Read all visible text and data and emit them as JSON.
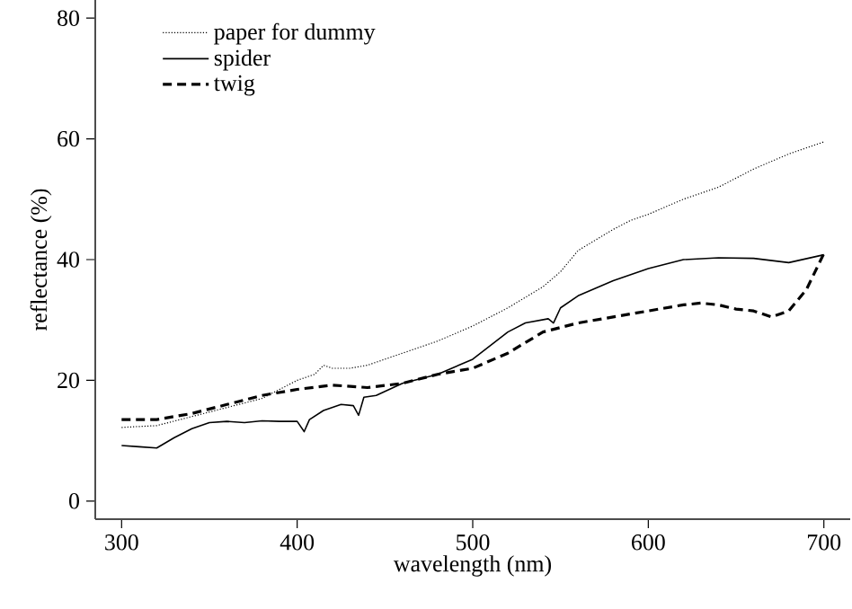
{
  "chart_data": {
    "type": "line",
    "xlabel": "wavelength (nm)",
    "ylabel": "reflectance (%)",
    "xlim": [
      285,
      715
    ],
    "ylim": [
      -3,
      83
    ],
    "xticks": [
      300,
      400,
      500,
      600,
      700
    ],
    "yticks": [
      0,
      20,
      40,
      60,
      80
    ],
    "grid": false,
    "legend": "top left",
    "marker": "none",
    "series": [
      {
        "name": "paper for dummy",
        "color": "#000000",
        "line_style": "dotted",
        "x": [
          300,
          320,
          340,
          360,
          380,
          400,
          410,
          415,
          420,
          430,
          440,
          460,
          480,
          500,
          520,
          540,
          550,
          560,
          580,
          590,
          600,
          620,
          640,
          660,
          680,
          700
        ],
        "values": [
          12.2,
          12.5,
          14,
          15.5,
          17,
          20,
          21,
          22.5,
          22,
          22,
          22.5,
          24.5,
          26.5,
          29,
          32,
          35.5,
          38,
          41.5,
          45,
          46.5,
          47.5,
          50,
          52,
          55,
          57.5,
          59.5
        ]
      },
      {
        "name": "spider",
        "color": "#000000",
        "line_style": "solid",
        "x": [
          300,
          310,
          320,
          330,
          340,
          350,
          360,
          370,
          380,
          390,
          400,
          404,
          407,
          415,
          425,
          432,
          435,
          438,
          445,
          460,
          480,
          500,
          520,
          530,
          543,
          546,
          550,
          560,
          580,
          600,
          620,
          640,
          660,
          680,
          700
        ],
        "values": [
          9.2,
          9,
          8.8,
          10.5,
          12,
          13,
          13.2,
          13,
          13.3,
          13.2,
          13.2,
          11.5,
          13.5,
          15,
          16,
          15.8,
          14.2,
          17.2,
          17.5,
          19.5,
          21,
          23.5,
          28,
          29.5,
          30.2,
          29.5,
          32,
          34,
          36.5,
          38.5,
          40,
          40.3,
          40.2,
          39.5,
          40.8
        ]
      },
      {
        "name": "twig",
        "color": "#000000",
        "line_style": "dashed",
        "x": [
          300,
          320,
          340,
          360,
          380,
          400,
          420,
          440,
          460,
          480,
          500,
          520,
          540,
          560,
          580,
          600,
          620,
          630,
          640,
          650,
          660,
          670,
          680,
          690,
          700
        ],
        "values": [
          13.5,
          13.5,
          14.5,
          16,
          17.5,
          18.5,
          19.2,
          18.8,
          19.5,
          21,
          22,
          24.5,
          28,
          29.5,
          30.5,
          31.5,
          32.5,
          32.8,
          32.5,
          31.8,
          31.5,
          30.5,
          31.5,
          35,
          41
        ]
      }
    ]
  }
}
